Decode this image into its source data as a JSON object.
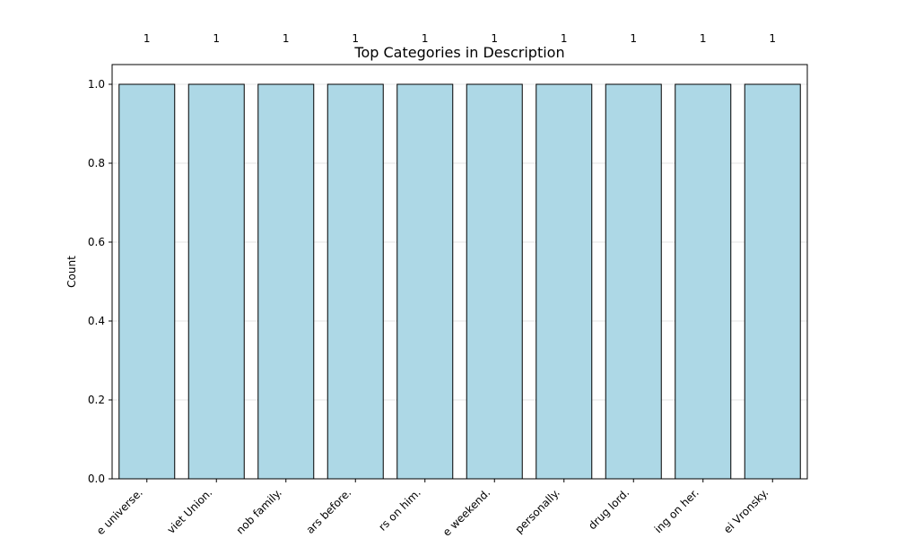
{
  "chart_data": {
    "type": "bar",
    "title": "Top Categories in Description",
    "xlabel": "",
    "ylabel": "Count",
    "categories": [
      "e universe.",
      "viet Union.",
      "nob family.",
      "ars before.",
      "rs on him.",
      "e weekend.",
      "personally.",
      "drug lord.",
      "ing on her.",
      "ei Vronsky."
    ],
    "values": [
      1,
      1,
      1,
      1,
      1,
      1,
      1,
      1,
      1,
      1
    ],
    "data_labels": [
      "1",
      "1",
      "1",
      "1",
      "1",
      "1",
      "1",
      "1",
      "1",
      "1"
    ],
    "ylim": [
      0,
      1.05
    ],
    "yticks": [
      0.0,
      0.2,
      0.4,
      0.6,
      0.8,
      1.0
    ],
    "ytick_labels": [
      "0.0",
      "0.2",
      "0.4",
      "0.6",
      "0.8",
      "1.0"
    ],
    "grid": "y",
    "bar_color": "#add8e6",
    "bar_edge_color": "#000000",
    "grid_color": "#e6e6e6"
  }
}
